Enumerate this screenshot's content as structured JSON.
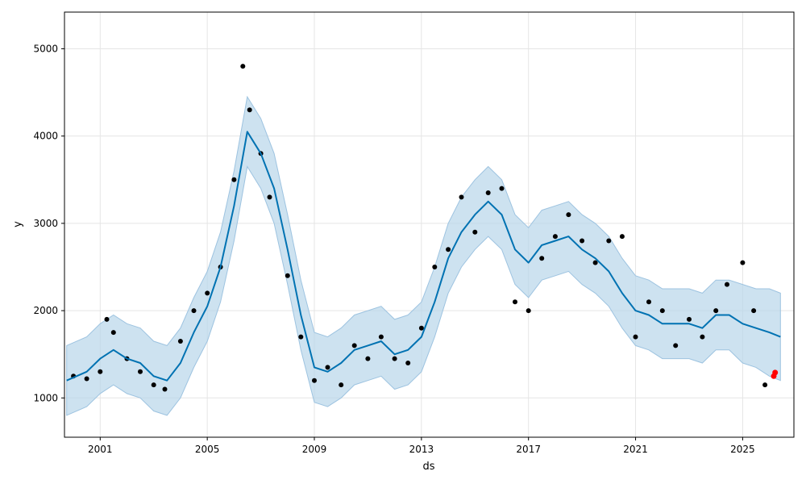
{
  "chart_data": {
    "type": "scatter",
    "title": "",
    "xlabel": "ds",
    "ylabel": "y",
    "xlim": [
      "1999-09-01",
      "2026-12-01"
    ],
    "ylim": [
      550,
      5420
    ],
    "x_ticks": [
      "2001",
      "2005",
      "2009",
      "2013",
      "2017",
      "2021",
      "2025"
    ],
    "y_ticks": [
      1000,
      2000,
      3000,
      4000,
      5000
    ],
    "grid": true,
    "legend": "none",
    "colors": {
      "points": "#000000",
      "forecast_line": "#0072B2",
      "band_fill": "#B8D6EA",
      "band_edge": "#9DC3E0",
      "recent_points": "#FF0000"
    },
    "series": [
      {
        "role": "observed",
        "kind": "scatter",
        "x": [
          "2000-01-01",
          "2000-07-01",
          "2001-01-01",
          "2001-04-01",
          "2001-07-01",
          "2002-01-01",
          "2002-07-01",
          "2003-01-01",
          "2003-06-01",
          "2004-01-01",
          "2004-07-01",
          "2005-01-01",
          "2005-07-01",
          "2006-01-01",
          "2006-05-01",
          "2006-08-01",
          "2007-01-01",
          "2007-05-01",
          "2008-01-01",
          "2008-07-01",
          "2009-01-01",
          "2009-07-01",
          "2010-01-01",
          "2010-07-01",
          "2011-01-01",
          "2011-07-01",
          "2012-01-01",
          "2012-07-01",
          "2013-01-01",
          "2013-07-01",
          "2014-01-01",
          "2014-07-01",
          "2015-01-01",
          "2015-07-01",
          "2016-01-01",
          "2016-07-01",
          "2017-01-01",
          "2017-07-01",
          "2018-01-01",
          "2018-07-01",
          "2019-01-01",
          "2019-07-01",
          "2020-01-01",
          "2020-07-01",
          "2021-01-01",
          "2021-07-01",
          "2022-01-01",
          "2022-07-01",
          "2023-01-01",
          "2023-07-01",
          "2024-01-01",
          "2024-06-01",
          "2025-01-01",
          "2025-06-01",
          "2025-11-01"
        ],
        "y": [
          1250,
          1220,
          1300,
          1900,
          1750,
          1450,
          1300,
          1150,
          1100,
          1650,
          2000,
          2200,
          2500,
          3500,
          4800,
          4300,
          3800,
          3300,
          2400,
          1700,
          1200,
          1350,
          1150,
          1600,
          1450,
          1700,
          1450,
          1400,
          1800,
          2500,
          2700,
          3300,
          2900,
          3350,
          3400,
          2100,
          2000,
          2600,
          2850,
          3100,
          2800,
          2550,
          2800,
          2850,
          1700,
          2100,
          2000,
          1600,
          1900,
          1700,
          2000,
          2300,
          2550,
          2000,
          1150
        ]
      },
      {
        "role": "recent",
        "kind": "scatter",
        "x": [
          "2026-03-01",
          "2026-03-20"
        ],
        "y": [
          1250,
          1290
        ]
      },
      {
        "role": "forecast",
        "kind": "line",
        "x": [
          "1999-10-01",
          "2000-07-01",
          "2001-01-01",
          "2001-07-01",
          "2002-01-01",
          "2002-07-01",
          "2003-01-01",
          "2003-07-01",
          "2004-01-01",
          "2004-07-01",
          "2005-01-01",
          "2005-07-01",
          "2006-01-01",
          "2006-07-01",
          "2007-01-01",
          "2007-07-01",
          "2008-01-01",
          "2008-07-01",
          "2009-01-01",
          "2009-07-01",
          "2010-01-01",
          "2010-07-01",
          "2011-01-01",
          "2011-07-01",
          "2012-01-01",
          "2012-07-01",
          "2013-01-01",
          "2013-07-01",
          "2014-01-01",
          "2014-07-01",
          "2015-01-01",
          "2015-07-01",
          "2016-01-01",
          "2016-07-01",
          "2017-01-01",
          "2017-07-01",
          "2018-01-01",
          "2018-07-01",
          "2019-01-01",
          "2019-07-01",
          "2020-01-01",
          "2020-07-01",
          "2021-01-01",
          "2021-07-01",
          "2022-01-01",
          "2022-07-01",
          "2023-01-01",
          "2023-07-01",
          "2024-01-01",
          "2024-07-01",
          "2025-01-01",
          "2025-07-01",
          "2026-01-01",
          "2026-06-01"
        ],
        "y": [
          1200,
          1300,
          1450,
          1550,
          1450,
          1400,
          1250,
          1200,
          1400,
          1750,
          2050,
          2500,
          3200,
          4050,
          3800,
          3400,
          2700,
          1950,
          1350,
          1300,
          1400,
          1550,
          1600,
          1650,
          1500,
          1550,
          1700,
          2100,
          2600,
          2900,
          3100,
          3250,
          3100,
          2700,
          2550,
          2750,
          2800,
          2850,
          2700,
          2600,
          2450,
          2200,
          2000,
          1950,
          1850,
          1850,
          1850,
          1800,
          1950,
          1950,
          1850,
          1800,
          1750,
          1700
        ]
      },
      {
        "role": "uncertainty",
        "kind": "area",
        "x": [
          "1999-10-01",
          "2000-07-01",
          "2001-01-01",
          "2001-07-01",
          "2002-01-01",
          "2002-07-01",
          "2003-01-01",
          "2003-07-01",
          "2004-01-01",
          "2004-07-01",
          "2005-01-01",
          "2005-07-01",
          "2006-01-01",
          "2006-07-01",
          "2007-01-01",
          "2007-07-01",
          "2008-01-01",
          "2008-07-01",
          "2009-01-01",
          "2009-07-01",
          "2010-01-01",
          "2010-07-01",
          "2011-01-01",
          "2011-07-01",
          "2012-01-01",
          "2012-07-01",
          "2013-01-01",
          "2013-07-01",
          "2014-01-01",
          "2014-07-01",
          "2015-01-01",
          "2015-07-01",
          "2016-01-01",
          "2016-07-01",
          "2017-01-01",
          "2017-07-01",
          "2018-01-01",
          "2018-07-01",
          "2019-01-01",
          "2019-07-01",
          "2020-01-01",
          "2020-07-01",
          "2021-01-01",
          "2021-07-01",
          "2022-01-01",
          "2022-07-01",
          "2023-01-01",
          "2023-07-01",
          "2024-01-01",
          "2024-07-01",
          "2025-01-01",
          "2025-07-01",
          "2026-01-01",
          "2026-06-01"
        ],
        "lower": [
          800,
          900,
          1050,
          1150,
          1050,
          1000,
          850,
          800,
          1000,
          1350,
          1650,
          2100,
          2800,
          3650,
          3400,
          3000,
          2300,
          1550,
          950,
          900,
          1000,
          1150,
          1200,
          1250,
          1100,
          1150,
          1300,
          1700,
          2200,
          2500,
          2700,
          2850,
          2700,
          2300,
          2150,
          2350,
          2400,
          2450,
          2300,
          2200,
          2050,
          1800,
          1600,
          1550,
          1450,
          1450,
          1450,
          1400,
          1550,
          1550,
          1400,
          1350,
          1250,
          1200
        ],
        "upper": [
          1600,
          1700,
          1850,
          1950,
          1850,
          1800,
          1650,
          1600,
          1800,
          2150,
          2450,
          2900,
          3600,
          4450,
          4200,
          3800,
          3100,
          2350,
          1750,
          1700,
          1800,
          1950,
          2000,
          2050,
          1900,
          1950,
          2100,
          2500,
          3000,
          3300,
          3500,
          3650,
          3500,
          3100,
          2950,
          3150,
          3200,
          3250,
          3100,
          3000,
          2850,
          2600,
          2400,
          2350,
          2250,
          2250,
          2250,
          2200,
          2350,
          2350,
          2300,
          2250,
          2250,
          2200
        ]
      }
    ]
  }
}
